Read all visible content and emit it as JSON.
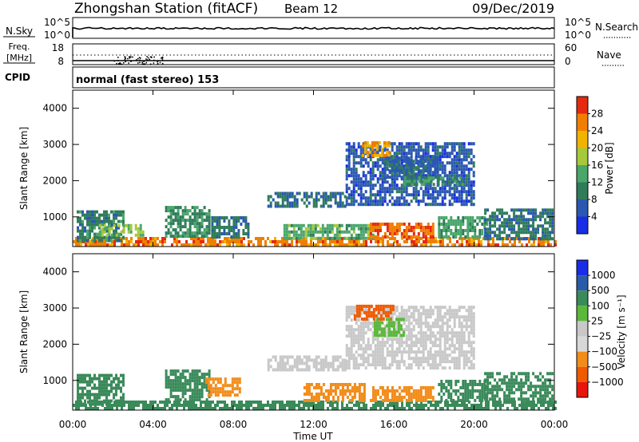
{
  "header": {
    "station": "Zhongshan Station (fitACF)",
    "beam": "Beam 12",
    "date": "09/Dec/2019"
  },
  "strips": {
    "nsky_label": "N.Sky",
    "nsky_ticks": [
      "10^5",
      "10^0"
    ],
    "nsearch_label": "N.Search",
    "nsearch_ticks": [
      "10^5",
      "10^0"
    ],
    "freq_label_line1": "Freq.",
    "freq_label_line2": "[MHz]",
    "freq_ticks": [
      "18",
      "8"
    ],
    "nave_label": "Nave",
    "nave_ticks": [
      "60",
      "0"
    ],
    "cpid_label": "CPID",
    "cpid_value": "normal (fast stereo) 153"
  },
  "colors": {
    "power": [
      "#1a2de6",
      "#2a58b0",
      "#2f7c5a",
      "#4aa66a",
      "#a6c93a",
      "#f0b400",
      "#f07f00",
      "#e52a10"
    ],
    "velocity": [
      "#e8160c",
      "#f05a00",
      "#f28c1a",
      "#d8d8d8",
      "#c8c8c8",
      "#5ab83a",
      "#3a8a5a",
      "#2a5aa8",
      "#1a2de6"
    ]
  },
  "chart_data": [
    {
      "type": "heatmap",
      "title": "Power",
      "ylabel": "Slant Range [km]",
      "xlabel": "Time UT",
      "xlim": [
        "00:00",
        "24:00"
      ],
      "x_ticks": [
        "00:00",
        "04:00",
        "08:00",
        "12:00",
        "16:00",
        "20:00",
        "00:00"
      ],
      "ylim": [
        180,
        4500
      ],
      "y_ticks": [
        "1000",
        "2000",
        "3000",
        "4000"
      ],
      "colorbar_label": "Power [dB]",
      "colorbar_ticks": [
        "4",
        "8",
        "12",
        "16",
        "20",
        "24",
        "28"
      ],
      "colorbar_range": [
        0,
        32
      ],
      "regions": [
        {
          "t0": 0.0,
          "t1": 24.0,
          "r0": 180,
          "r1": 420,
          "value": 26
        },
        {
          "t0": 0.2,
          "t1": 2.5,
          "r0": 300,
          "r1": 1150,
          "value": 10
        },
        {
          "t0": 1.3,
          "t1": 3.5,
          "r0": 450,
          "r1": 800,
          "value": 17
        },
        {
          "t0": 4.6,
          "t1": 6.8,
          "r0": 420,
          "r1": 1250,
          "value": 11
        },
        {
          "t0": 6.9,
          "t1": 8.7,
          "r0": 400,
          "r1": 950,
          "value": 9
        },
        {
          "t0": 9.7,
          "t1": 13.6,
          "r0": 1250,
          "r1": 1650,
          "value": 8
        },
        {
          "t0": 10.5,
          "t1": 15.0,
          "r0": 360,
          "r1": 720,
          "value": 14
        },
        {
          "t0": 13.6,
          "t1": 20.0,
          "r0": 1300,
          "r1": 3050,
          "value": 6
        },
        {
          "t0": 14.4,
          "t1": 15.8,
          "r0": 2650,
          "r1": 3050,
          "value": 23
        },
        {
          "t0": 15.5,
          "t1": 18.2,
          "r0": 2050,
          "r1": 2600,
          "value": 7
        },
        {
          "t0": 16.5,
          "t1": 19.4,
          "r0": 1850,
          "r1": 2100,
          "value": 12
        },
        {
          "t0": 14.8,
          "t1": 18.0,
          "r0": 400,
          "r1": 800,
          "value": 27
        },
        {
          "t0": 18.2,
          "t1": 20.7,
          "r0": 400,
          "r1": 1000,
          "value": 13
        },
        {
          "t0": 20.5,
          "t1": 23.9,
          "r0": 350,
          "r1": 1150,
          "value": 9
        }
      ]
    },
    {
      "type": "heatmap",
      "title": "Velocity",
      "ylabel": "Slant Range [km]",
      "xlabel": "Time UT",
      "xlim": [
        "00:00",
        "24:00"
      ],
      "x_ticks": [
        "00:00",
        "04:00",
        "08:00",
        "12:00",
        "16:00",
        "20:00",
        "00:00"
      ],
      "ylim": [
        180,
        4500
      ],
      "y_ticks": [
        "1000",
        "2000",
        "3000",
        "4000"
      ],
      "colorbar_label": "Velocity [m s⁻¹]",
      "colorbar_ticks": [
        "1000",
        "500",
        "100",
        "25",
        "−25",
        "−100",
        "−500",
        "−1000"
      ],
      "regions": [
        {
          "t0": 0.0,
          "t1": 24.0,
          "r0": 180,
          "r1": 420,
          "value": 300
        },
        {
          "t0": 0.2,
          "t1": 2.5,
          "r0": 300,
          "r1": 1150,
          "value": 300
        },
        {
          "t0": 4.6,
          "t1": 6.8,
          "r0": 420,
          "r1": 1250,
          "value": 300
        },
        {
          "t0": 6.6,
          "t1": 8.3,
          "r0": 550,
          "r1": 1000,
          "value": -300
        },
        {
          "t0": 9.7,
          "t1": 13.6,
          "r0": 1250,
          "r1": 1650,
          "value": 0
        },
        {
          "t0": 11.5,
          "t1": 14.5,
          "r0": 400,
          "r1": 900,
          "value": -300
        },
        {
          "t0": 13.6,
          "t1": 20.0,
          "r0": 1300,
          "r1": 3050,
          "value": 0
        },
        {
          "t0": 14.0,
          "t1": 16.0,
          "r0": 2650,
          "r1": 3050,
          "value": -600
        },
        {
          "t0": 15.0,
          "t1": 16.5,
          "r0": 2200,
          "r1": 2700,
          "value": 60
        },
        {
          "t0": 14.8,
          "t1": 18.0,
          "r0": 400,
          "r1": 800,
          "value": -150
        },
        {
          "t0": 18.2,
          "t1": 20.7,
          "r0": 400,
          "r1": 1000,
          "value": 300
        },
        {
          "t0": 20.5,
          "t1": 23.9,
          "r0": 350,
          "r1": 1150,
          "value": 300
        }
      ]
    }
  ]
}
